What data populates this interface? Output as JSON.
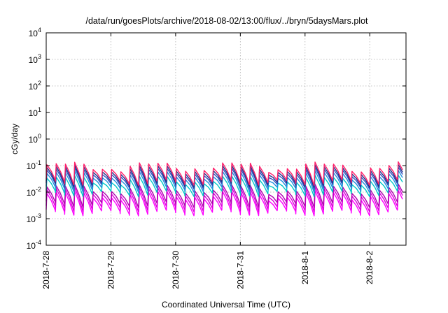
{
  "chart_data": {
    "type": "line",
    "title": "/data/run/goesPlots/archive/2018-08-02/13:00/flux/../bryn/5daysMars.plot",
    "xlabel": "Coordinated Universal Time (UTC)",
    "ylabel": "cGy/day",
    "yscale": "log",
    "ylim_exponents": [
      -4,
      4
    ],
    "y_ticks": [
      {
        "base": "10",
        "exp": "-4"
      },
      {
        "base": "10",
        "exp": "-3"
      },
      {
        "base": "10",
        "exp": "-2"
      },
      {
        "base": "10",
        "exp": "-1"
      },
      {
        "base": "10",
        "exp": "0"
      },
      {
        "base": "10",
        "exp": "1"
      },
      {
        "base": "10",
        "exp": "2"
      },
      {
        "base": "10",
        "exp": "3"
      },
      {
        "base": "10",
        "exp": "4"
      }
    ],
    "x_range_days": [
      0,
      5.56
    ],
    "x_ticks": [
      {
        "label": "2018-7-28",
        "day": 0
      },
      {
        "label": "2018-7-29",
        "day": 1
      },
      {
        "label": "2018-7-30",
        "day": 2
      },
      {
        "label": "2018-7-31",
        "day": 3
      },
      {
        "label": "2018-8-1",
        "day": 4
      },
      {
        "label": "2018-8-2",
        "day": 5
      }
    ],
    "grid": true,
    "series_colors": [
      "#ff00ff",
      "#dd00dd",
      "#b000b0",
      "#00c8c8",
      "#2090e0",
      "#3050c0",
      "#223388",
      "#ff1f6a"
    ],
    "cycles_per_day": 7,
    "series_levels": [
      {
        "peak": 0.008,
        "low": 0.0017
      },
      {
        "peak": 0.011,
        "low": 0.0024
      },
      {
        "peak": 0.014,
        "low": 0.0035
      },
      {
        "peak": 0.03,
        "low": 0.009
      },
      {
        "peak": 0.045,
        "low": 0.013
      },
      {
        "peak": 0.06,
        "low": 0.017
      },
      {
        "peak": 0.075,
        "low": 0.02
      },
      {
        "peak": 0.095,
        "low": 0.024
      }
    ]
  }
}
